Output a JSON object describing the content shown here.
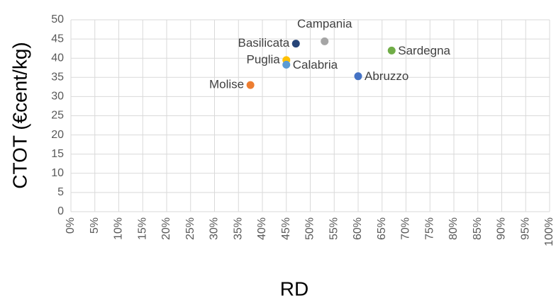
{
  "chart_data": {
    "type": "scatter",
    "x_label": "RD",
    "y_label": "CTOT (€cent/kg)",
    "series": [
      {
        "name": "Molise",
        "color": "#ed7d31",
        "x": [
          37.5
        ],
        "values": [
          33
        ]
      },
      {
        "name": "Puglia",
        "color": "#ffc000",
        "x": [
          45
        ],
        "values": [
          39.5
        ]
      },
      {
        "name": "Calabria",
        "color": "#5b9bd5",
        "x": [
          45
        ],
        "values": [
          38.3
        ]
      },
      {
        "name": "Basilicata",
        "color": "#264478",
        "x": [
          47
        ],
        "values": [
          43.8
        ]
      },
      {
        "name": "Campania",
        "color": "#a5a5a5",
        "x": [
          53
        ],
        "values": [
          44.4
        ]
      },
      {
        "name": "Abruzzo",
        "color": "#4472c4",
        "x": [
          60
        ],
        "values": [
          35.3
        ]
      },
      {
        "name": "Sardegna",
        "color": "#70ad47",
        "x": [
          67
        ],
        "values": [
          42
        ]
      }
    ],
    "xlim": [
      0,
      100
    ],
    "xticks": [
      {
        "value": 0,
        "label": "0%"
      },
      {
        "value": 5,
        "label": "5%"
      },
      {
        "value": 10,
        "label": "10%"
      },
      {
        "value": 15,
        "label": "15%"
      },
      {
        "value": 20,
        "label": "20%"
      },
      {
        "value": 25,
        "label": "25%"
      },
      {
        "value": 30,
        "label": "30%"
      },
      {
        "value": 35,
        "label": "35%"
      },
      {
        "value": 40,
        "label": "40%"
      },
      {
        "value": 45,
        "label": "45%"
      },
      {
        "value": 50,
        "label": "50%"
      },
      {
        "value": 55,
        "label": "55%"
      },
      {
        "value": 60,
        "label": "60%"
      },
      {
        "value": 65,
        "label": "65%"
      },
      {
        "value": 70,
        "label": "70%"
      },
      {
        "value": 75,
        "label": "75%"
      },
      {
        "value": 80,
        "label": "80%"
      },
      {
        "value": 85,
        "label": "85%"
      },
      {
        "value": 90,
        "label": "90%"
      },
      {
        "value": 95,
        "label": "95%"
      },
      {
        "value": 100,
        "label": "100%"
      }
    ],
    "ylim": [
      0,
      50
    ],
    "yticks": [
      0,
      5,
      10,
      15,
      20,
      25,
      30,
      35,
      40,
      45,
      50
    ],
    "grid": true
  }
}
